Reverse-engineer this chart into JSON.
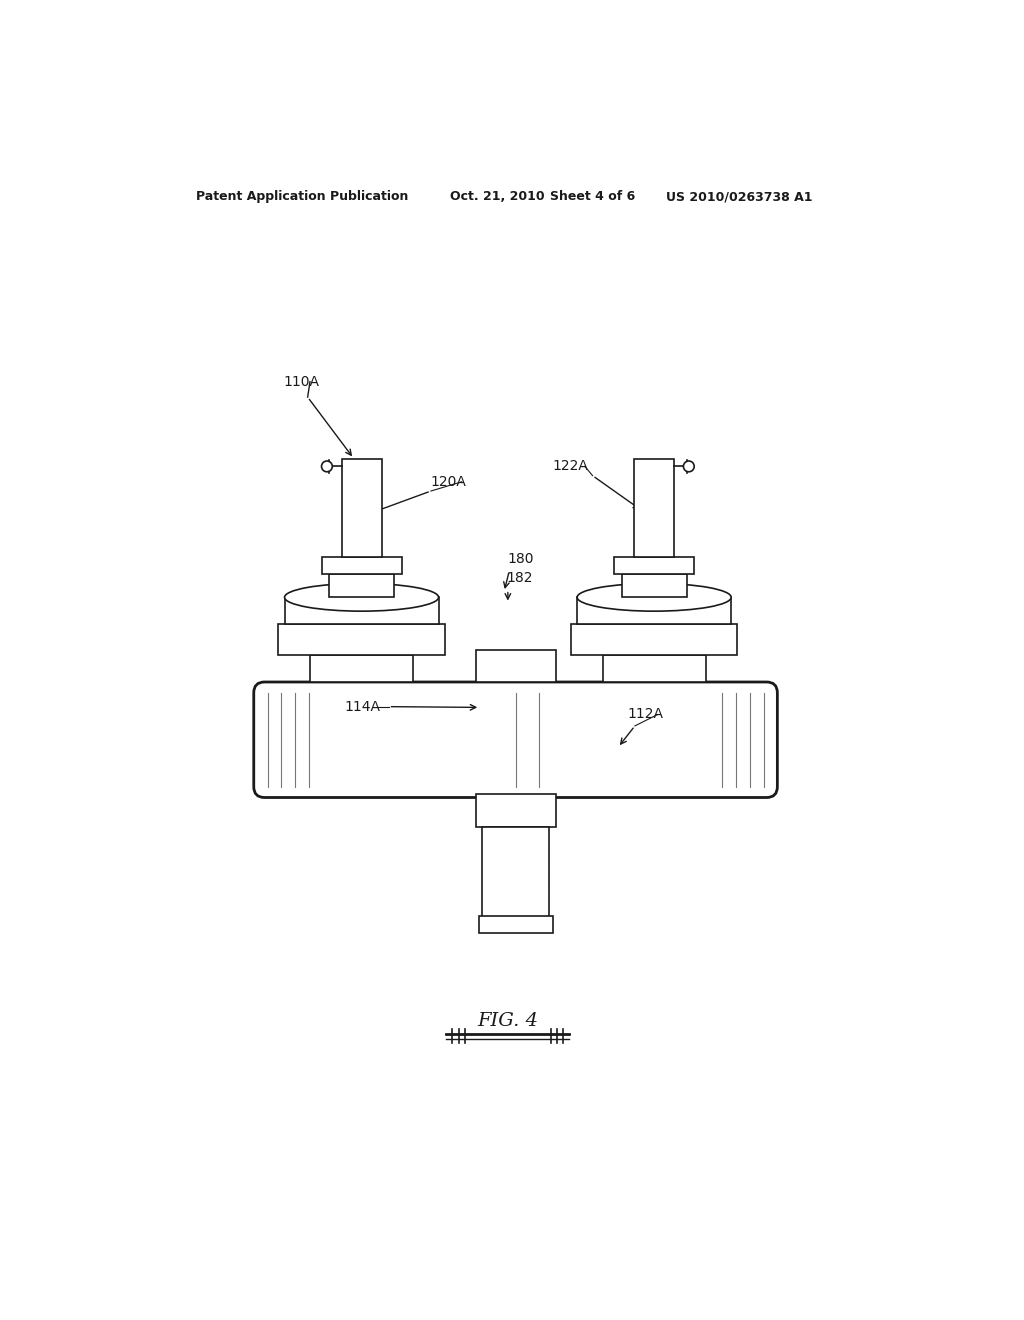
{
  "background_color": "#ffffff",
  "header_text": "Patent Application Publication",
  "header_date": "Oct. 21, 2010",
  "header_sheet": "Sheet 4 of 6",
  "header_patent": "US 2010/0263738 A1",
  "line_color": "#1a1a1a",
  "shade_color": "#888888",
  "light_shade": "#cccccc",
  "fig_label": "FIG. 4",
  "drawing_scale": 1.0
}
